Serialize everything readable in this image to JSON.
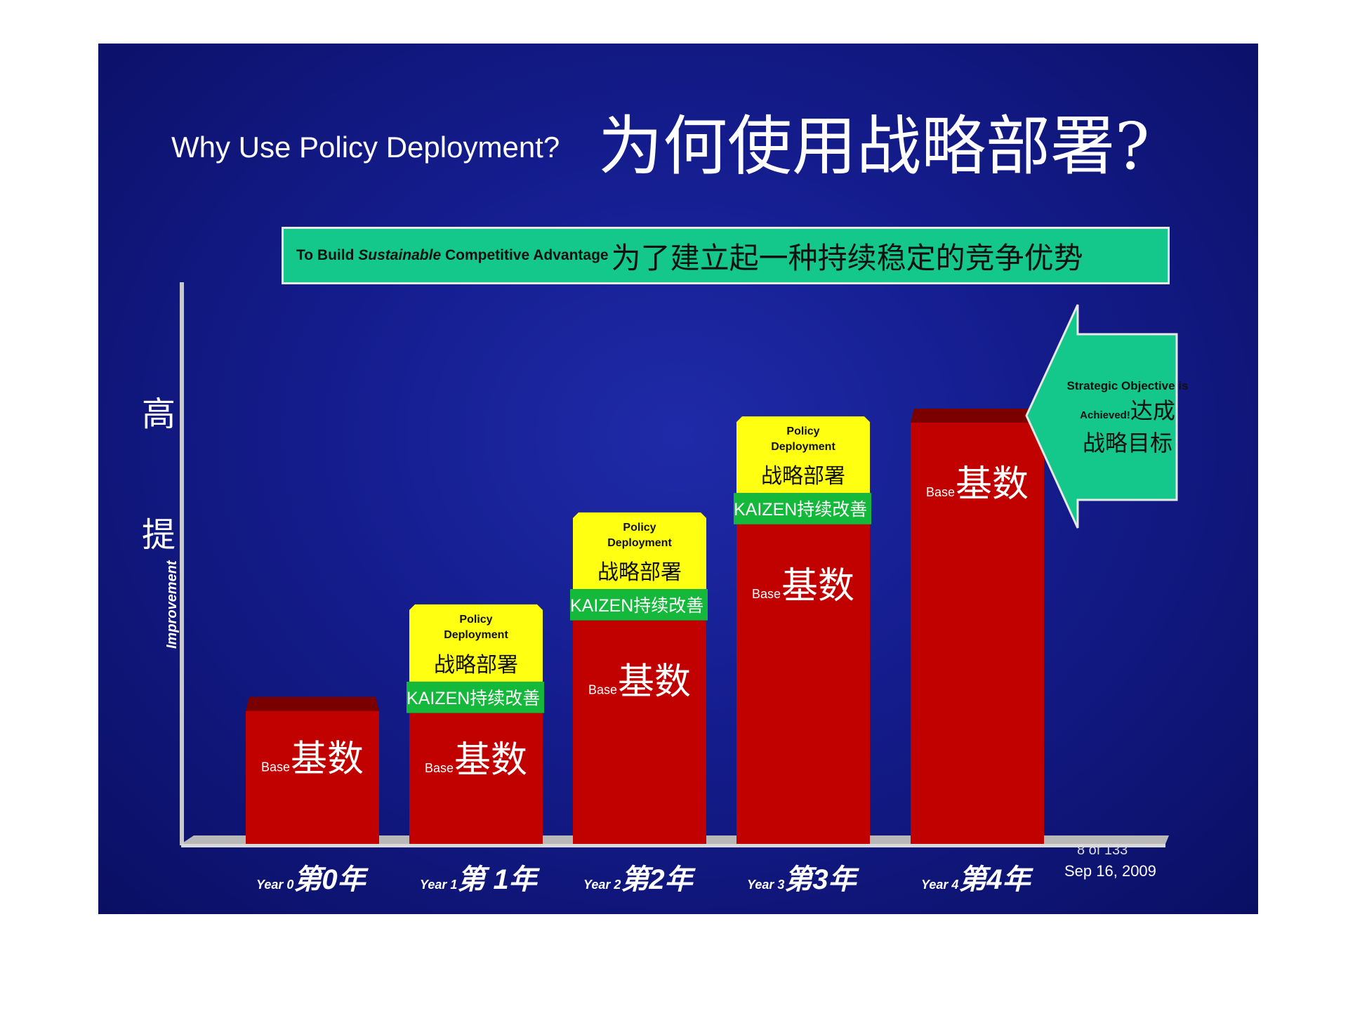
{
  "slide": {
    "title_en": "Why Use Policy Deployment?",
    "title_zh": "为何使用战略部署?",
    "banner": {
      "prefix": "To Build ",
      "emphasis": "Sustainable",
      "suffix": " Competitive Advantage",
      "zh": "为了建立起一种持续稳定的竞争优势"
    },
    "y_axis": {
      "label_en": "Improvement",
      "label_zh_top": "高",
      "label_zh_bottom": "提"
    },
    "arrow": {
      "line1": "Strategic Objective is",
      "line2": "Achieved!",
      "zh_a": "达成",
      "zh_b": "战略目标"
    },
    "page_count": "8 of 133",
    "date": "Sep 16, 2009",
    "colors": {
      "background": "#141c8c",
      "base": "#c10000",
      "policy": "#ffff11",
      "kaizen": "#14b83a",
      "banner": "#14c78a"
    }
  },
  "chart_data": {
    "type": "bar",
    "stacked": true,
    "categories": [
      "Year 0",
      "Year 1",
      "Year 2",
      "Year 3",
      "Year 4"
    ],
    "category_labels_zh": [
      "第0年",
      "第 1年",
      "第2年",
      "第3年",
      "第4年"
    ],
    "category_prefix": "Year",
    "category_numbers": [
      "0",
      "1",
      "2",
      "3",
      "4"
    ],
    "series": [
      {
        "name": "Base基数",
        "label_en": "Base",
        "label_zh": "基数",
        "values": [
          191,
          188,
          321,
          459,
          605
        ]
      },
      {
        "name": "KAIZEN持续改善",
        "label_en": "KAIZEN",
        "label_zh": "持续改善",
        "values": [
          0,
          45,
          45,
          45,
          0
        ]
      },
      {
        "name": "Policy Deployment 战略部署",
        "label_en": "Policy Deployment",
        "label_zh": "战略部署",
        "values": [
          0,
          111,
          110,
          110,
          0
        ]
      }
    ],
    "ylabel": "Improvement",
    "ylim": [
      0,
      800
    ],
    "grid": false
  }
}
